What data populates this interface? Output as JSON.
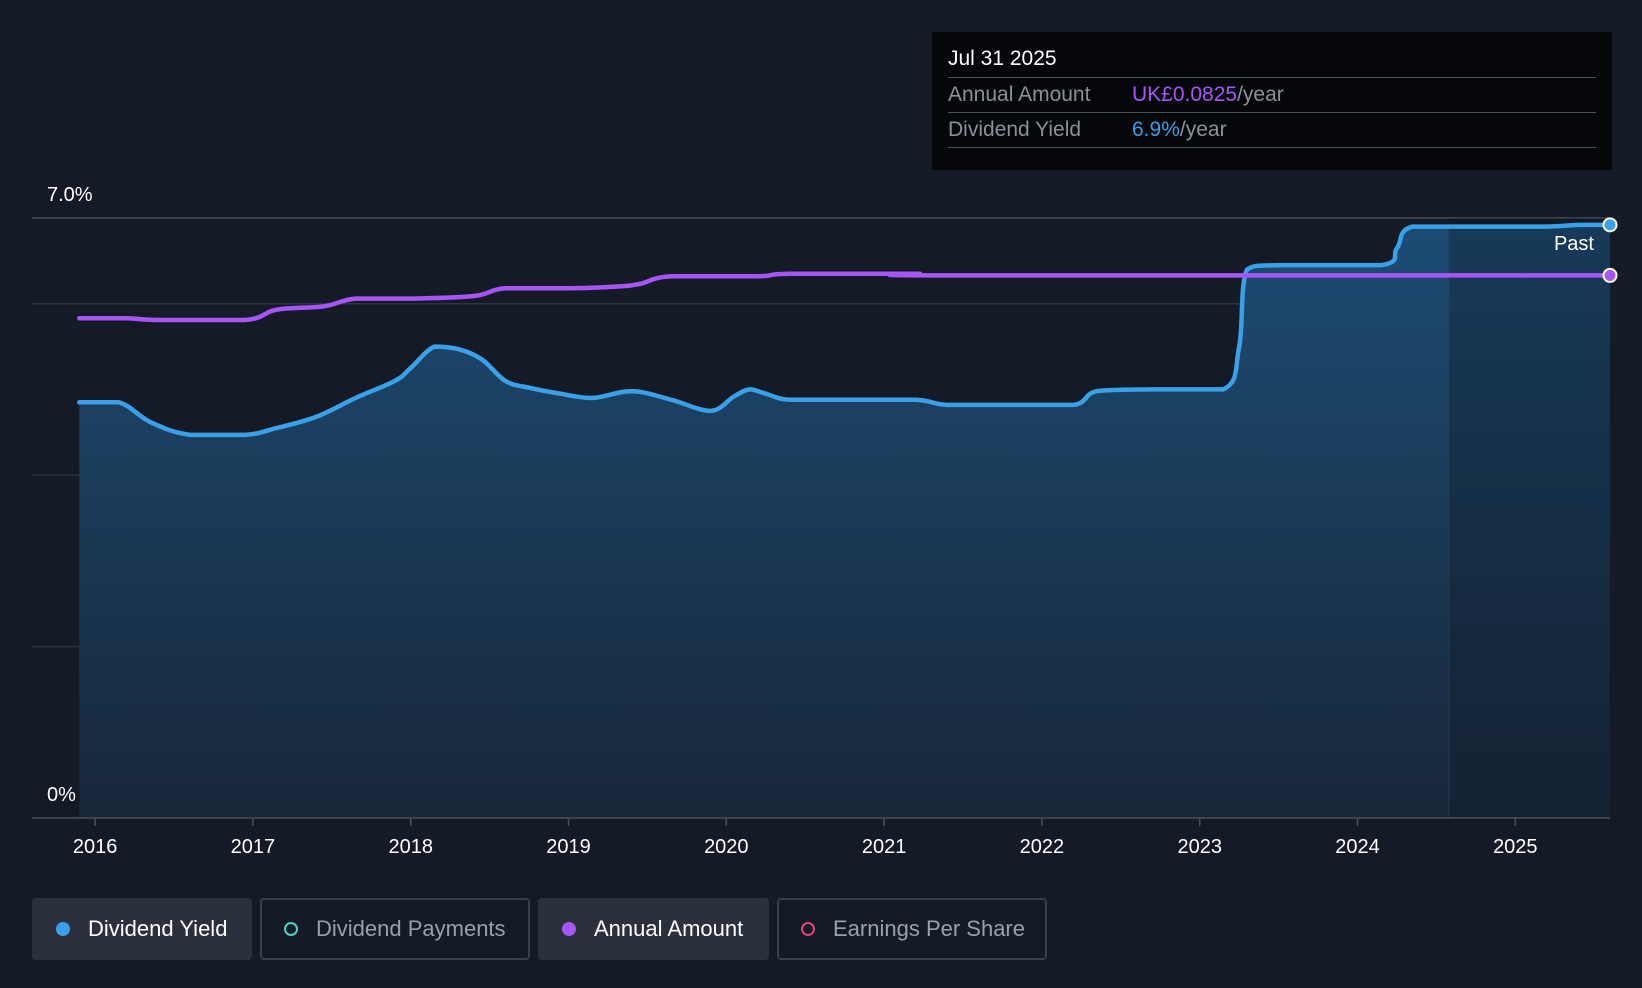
{
  "tooltip": {
    "date": "Jul 31 2025",
    "rows": [
      {
        "label": "Annual Amount",
        "value": "UK£0.0825",
        "unit": "/year"
      },
      {
        "label": "Dividend Yield",
        "value": "6.9%",
        "unit": "/year"
      }
    ]
  },
  "past_label": "Past",
  "legend": [
    {
      "label": "Dividend Yield",
      "color": "#3aa0e8",
      "active": true
    },
    {
      "label": "Dividend Payments",
      "color": "#4fd1c5",
      "active": false
    },
    {
      "label": "Annual Amount",
      "color": "#a855f7",
      "active": true
    },
    {
      "label": "Earnings Per Share",
      "color": "#e0457b",
      "active": false
    }
  ],
  "colors": {
    "background": "#151b26",
    "yield": "#3aa0e8",
    "annual": "#a855f7",
    "grid": "#2c333e"
  },
  "chart_data": {
    "type": "line",
    "title": "",
    "xlabel": "",
    "ylabel": "",
    "ylim": [
      0,
      7.0
    ],
    "xlim": [
      2015.6,
      2025.6
    ],
    "y_tick_labels": [
      "7.0%",
      "0%"
    ],
    "y_gridlines": [
      7.0,
      6.0,
      4.0,
      2.0
    ],
    "x_ticks": [
      2016,
      2017,
      2018,
      2019,
      2020,
      2021,
      2022,
      2023,
      2024,
      2025
    ],
    "past_boundary_x": 2024.58,
    "series": [
      {
        "name": "Dividend Yield",
        "color": "#3aa0e8",
        "filled": true,
        "points": [
          [
            2015.9,
            4.85
          ],
          [
            2016.15,
            4.85
          ],
          [
            2016.35,
            4.62
          ],
          [
            2016.6,
            4.47
          ],
          [
            2016.95,
            4.47
          ],
          [
            2017.15,
            4.55
          ],
          [
            2017.4,
            4.68
          ],
          [
            2017.65,
            4.9
          ],
          [
            2017.9,
            5.1
          ],
          [
            2018.0,
            5.25
          ],
          [
            2018.15,
            5.5
          ],
          [
            2018.3,
            5.47
          ],
          [
            2018.45,
            5.35
          ],
          [
            2018.6,
            5.1
          ],
          [
            2018.75,
            5.02
          ],
          [
            2018.95,
            4.95
          ],
          [
            2019.15,
            4.9
          ],
          [
            2019.4,
            4.98
          ],
          [
            2019.65,
            4.88
          ],
          [
            2019.9,
            4.75
          ],
          [
            2020.05,
            4.92
          ],
          [
            2020.15,
            5.0
          ],
          [
            2020.25,
            4.95
          ],
          [
            2020.4,
            4.88
          ],
          [
            2020.75,
            4.88
          ],
          [
            2021.2,
            4.88
          ],
          [
            2021.4,
            4.82
          ],
          [
            2021.8,
            4.82
          ],
          [
            2022.2,
            4.82
          ],
          [
            2022.35,
            4.98
          ],
          [
            2022.7,
            5.0
          ],
          [
            2023.15,
            5.0
          ],
          [
            2023.25,
            5.5
          ],
          [
            2023.3,
            6.4
          ],
          [
            2023.5,
            6.45
          ],
          [
            2024.15,
            6.45
          ],
          [
            2024.25,
            6.65
          ],
          [
            2024.35,
            6.9
          ],
          [
            2024.8,
            6.9
          ],
          [
            2025.2,
            6.9
          ],
          [
            2025.4,
            6.92
          ],
          [
            2025.6,
            6.92
          ]
        ]
      },
      {
        "name": "Annual Amount",
        "color": "#a855f7",
        "filled": false,
        "points": [
          [
            2015.9,
            5.83
          ],
          [
            2016.2,
            5.83
          ],
          [
            2016.4,
            5.81
          ],
          [
            2016.95,
            5.81
          ],
          [
            2017.15,
            5.93
          ],
          [
            2017.45,
            5.97
          ],
          [
            2017.65,
            6.06
          ],
          [
            2018.0,
            6.06
          ],
          [
            2018.4,
            6.09
          ],
          [
            2018.6,
            6.18
          ],
          [
            2019.0,
            6.18
          ],
          [
            2019.3,
            6.2
          ],
          [
            2019.45,
            6.23
          ],
          [
            2019.65,
            6.32
          ],
          [
            2020.2,
            6.32
          ],
          [
            2020.4,
            6.35
          ],
          [
            2021.2,
            6.35
          ],
          [
            2021.4,
            6.33
          ],
          [
            2025.6,
            6.33
          ]
        ]
      }
    ]
  }
}
